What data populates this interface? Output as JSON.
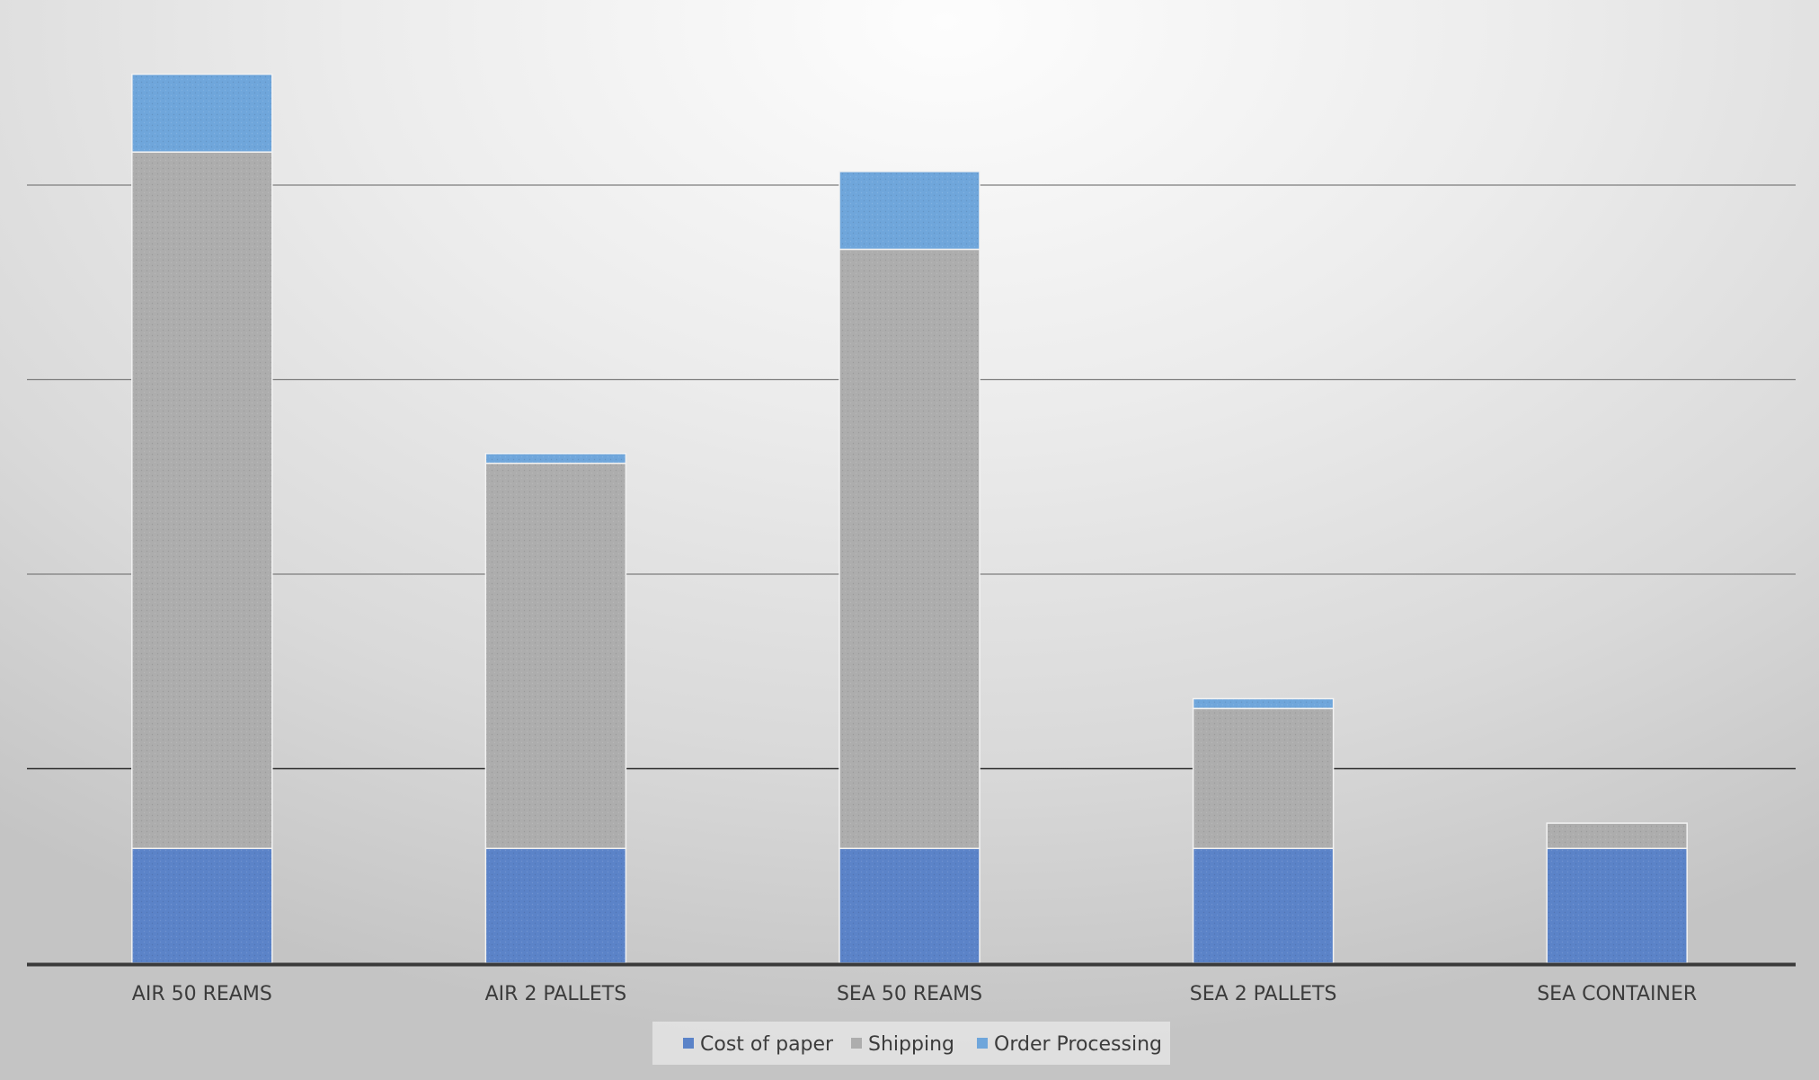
{
  "chart_data": {
    "type": "bar",
    "stacked": true,
    "categories": [
      "AIR 50 REAMS",
      "AIR 2 PALLETS",
      "SEA 50 REAMS",
      "SEA 2 PALLETS",
      "SEA CONTAINER"
    ],
    "series": [
      {
        "name": "Cost of paper",
        "color": "#5b83c8",
        "values": [
          0.59,
          0.59,
          0.59,
          0.59,
          0.59
        ]
      },
      {
        "name": "Shipping",
        "color": "#adadad",
        "values": [
          3.58,
          1.98,
          3.08,
          0.72,
          0.13
        ]
      },
      {
        "name": "Order Processing",
        "color": "#6fa6db",
        "values": [
          0.4,
          0.05,
          0.4,
          0.05,
          0.0
        ]
      }
    ],
    "ylim": [
      0,
      5
    ],
    "gridlines": [
      1,
      2,
      3,
      4
    ],
    "grid": true,
    "legend": "bottom-center",
    "title": "",
    "xlabel": "",
    "ylabel": ""
  }
}
